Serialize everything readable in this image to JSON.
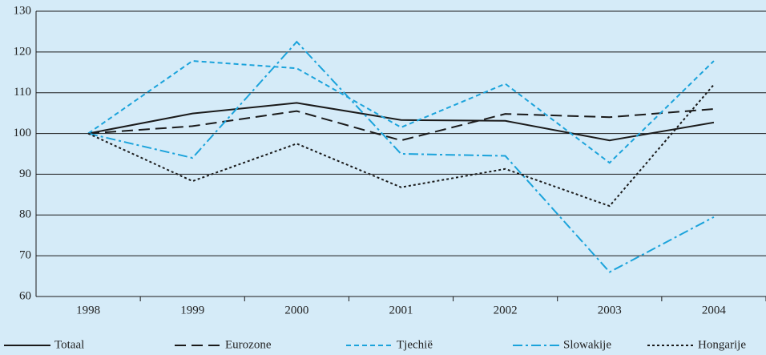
{
  "chart_data": {
    "type": "line",
    "categories": [
      "1998",
      "1999",
      "2000",
      "2001",
      "2002",
      "2003",
      "2004"
    ],
    "series": [
      {
        "name": "Totaal",
        "color": "#1a1a1a",
        "dash": "solid",
        "values": [
          100,
          104.9,
          107.5,
          103.3,
          103.1,
          98.3,
          102.7
        ]
      },
      {
        "name": "Eurozone",
        "color": "#1a1a1a",
        "dash": "dashed",
        "values": [
          100,
          101.8,
          105.5,
          98.3,
          104.8,
          104,
          106
        ]
      },
      {
        "name": "Tjechië",
        "color": "#1ba3db",
        "dash": "short-dashed",
        "values": [
          100,
          117.8,
          116,
          101.5,
          112.2,
          92.8,
          117.8
        ]
      },
      {
        "name": "Slowakije",
        "color": "#1ba3db",
        "dash": "dash-dot",
        "values": [
          100,
          94,
          122.5,
          95,
          94.5,
          66,
          79.5
        ]
      },
      {
        "name": "Hongarije",
        "color": "#1a1a1a",
        "dash": "dotted",
        "values": [
          100,
          88.3,
          97.5,
          86.8,
          91.3,
          82.2,
          112
        ]
      }
    ],
    "ylim": [
      60,
      130
    ],
    "yticks": [
      60,
      70,
      80,
      90,
      100,
      110,
      120,
      130
    ],
    "grid": true,
    "legend": "bottom"
  }
}
